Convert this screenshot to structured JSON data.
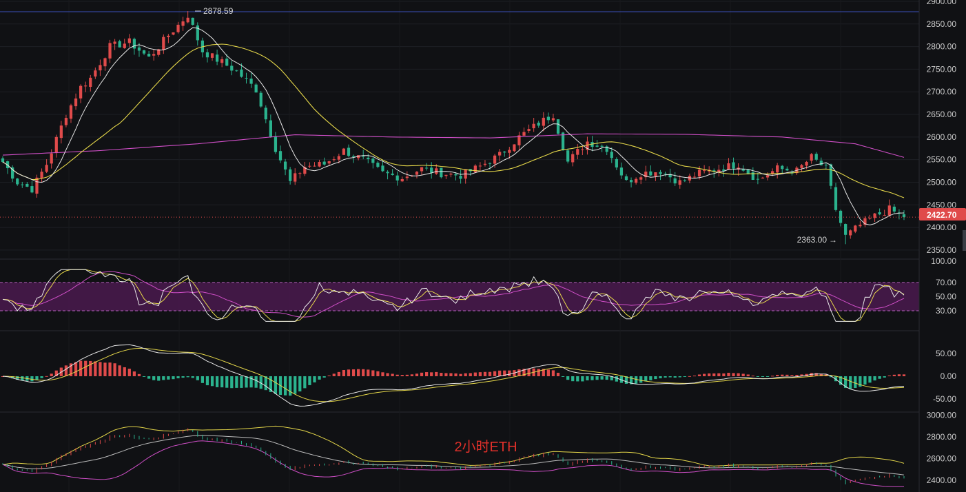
{
  "chart_data": {
    "type": "candlestick",
    "title": "2小时ETH",
    "annotations": {
      "high_label": "2878.59",
      "low_label": "2363.00",
      "last_price_label": "2422.70"
    },
    "colors": {
      "background": "#101114",
      "up": "#e04b4b",
      "down": "#2bb38e",
      "ma_fast": "#e8e8e8",
      "ma_slow": "#e6d84a",
      "ma_long": "#d04fc8",
      "rsi_band": "#4a1a4e",
      "last_price": "#e04b4b"
    },
    "price_panel": {
      "ylim": [
        2330,
        2900
      ],
      "ticks": [
        "2900.00",
        "2850.00",
        "2800.00",
        "2750.00",
        "2700.00",
        "2650.00",
        "2600.00",
        "2550.00",
        "2500.00",
        "2450.00",
        "2400.00",
        "2350.00"
      ],
      "anchors": [
        [
          0,
          2545
        ],
        [
          3,
          2500
        ],
        [
          6,
          2485
        ],
        [
          9,
          2540
        ],
        [
          13,
          2650
        ],
        [
          16,
          2710
        ],
        [
          18,
          2730
        ],
        [
          22,
          2800
        ],
        [
          26,
          2810
        ],
        [
          30,
          2775
        ],
        [
          34,
          2825
        ],
        [
          38,
          2870
        ],
        [
          41,
          2790
        ],
        [
          45,
          2765
        ],
        [
          48,
          2745
        ],
        [
          52,
          2705
        ],
        [
          56,
          2575
        ],
        [
          59,
          2500
        ],
        [
          62,
          2535
        ],
        [
          66,
          2540
        ],
        [
          70,
          2570
        ],
        [
          74,
          2550
        ],
        [
          78,
          2520
        ],
        [
          82,
          2510
        ],
        [
          86,
          2530
        ],
        [
          90,
          2520
        ],
        [
          94,
          2515
        ],
        [
          98,
          2535
        ],
        [
          102,
          2560
        ],
        [
          106,
          2600
        ],
        [
          110,
          2630
        ],
        [
          113,
          2650
        ],
        [
          116,
          2545
        ],
        [
          120,
          2590
        ],
        [
          124,
          2575
        ],
        [
          128,
          2500
        ],
        [
          131,
          2520
        ],
        [
          135,
          2525
        ],
        [
          139,
          2500
        ],
        [
          143,
          2520
        ],
        [
          147,
          2530
        ],
        [
          151,
          2540
        ],
        [
          155,
          2505
        ],
        [
          159,
          2530
        ],
        [
          163,
          2525
        ],
        [
          166,
          2555
        ],
        [
          169,
          2530
        ],
        [
          171,
          2440
        ],
        [
          173,
          2380
        ],
        [
          176,
          2405
        ],
        [
          179,
          2425
        ],
        [
          182,
          2440
        ],
        [
          185,
          2422.7
        ]
      ],
      "count": 186,
      "ma_long_values": [
        [
          0,
          2560
        ],
        [
          20,
          2570
        ],
        [
          40,
          2585
        ],
        [
          60,
          2605
        ],
        [
          80,
          2600
        ],
        [
          100,
          2598
        ],
        [
          120,
          2607
        ],
        [
          140,
          2606
        ],
        [
          160,
          2600
        ],
        [
          175,
          2585
        ],
        [
          185,
          2555
        ]
      ]
    },
    "rsi_panel": {
      "ylim": [
        0,
        100
      ],
      "ticks": [
        "100.00",
        "70.00",
        "50.00",
        "30.00"
      ],
      "band": [
        30,
        70
      ]
    },
    "macd_panel": {
      "ylim": [
        -80,
        70
      ],
      "ticks": [
        "50.00",
        "0.00",
        "-50.00"
      ]
    },
    "bb_panel": {
      "ylim": [
        2300,
        3050
      ],
      "ticks": [
        "3000.00",
        "2800.00",
        "2600.00",
        "2400.00"
      ]
    }
  }
}
